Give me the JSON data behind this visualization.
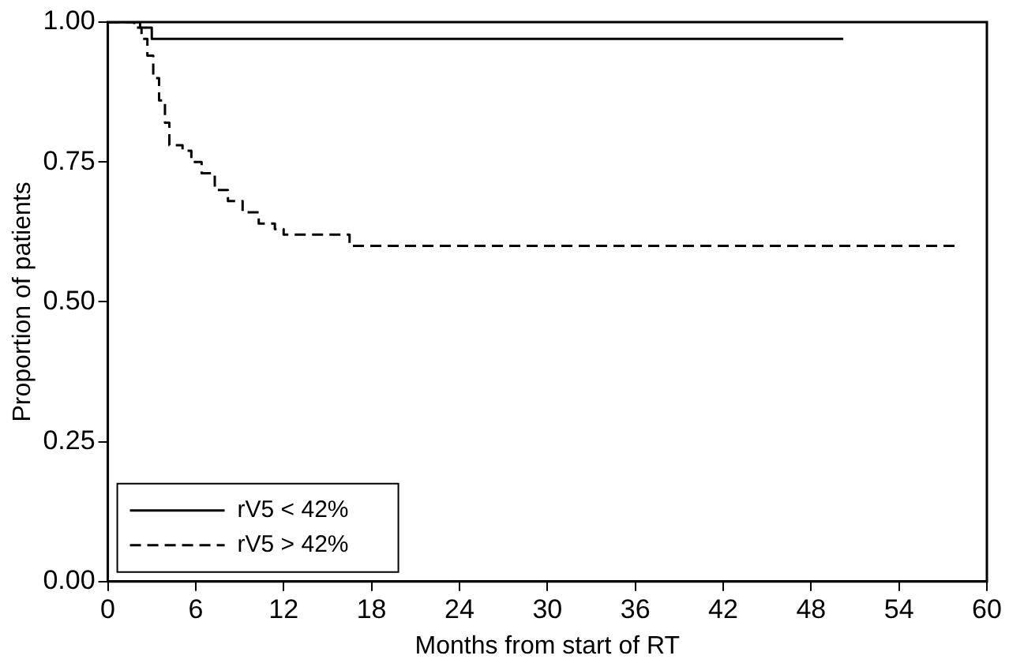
{
  "chart_data": {
    "type": "step",
    "xlabel": "Months from start of RT",
    "ylabel": "Proportion of patients",
    "series": [
      {
        "name": "rV5 < 42%",
        "color": "#000000",
        "line_style": "solid",
        "x": [
          0,
          2.2,
          3.0,
          50.2
        ],
        "values": [
          1.0,
          0.99,
          0.97,
          0.97
        ]
      },
      {
        "name": "rV5 > 42%",
        "color": "#000000",
        "line_style": "dashed",
        "x": [
          0,
          1.8,
          2.3,
          2.7,
          3.1,
          3.5,
          3.9,
          4.2,
          5.1,
          5.7,
          6.4,
          7.3,
          8.2,
          9.2,
          10.3,
          11.4,
          12.0,
          16.5,
          58.0
        ],
        "values": [
          1.0,
          0.99,
          0.97,
          0.94,
          0.9,
          0.86,
          0.82,
          0.78,
          0.77,
          0.75,
          0.73,
          0.7,
          0.68,
          0.66,
          0.64,
          0.63,
          0.62,
          0.6,
          0.6
        ]
      }
    ],
    "xlim": [
      0,
      60
    ],
    "xticks": [
      0,
      6,
      12,
      18,
      24,
      30,
      36,
      42,
      48,
      54,
      60
    ],
    "ylim": [
      0,
      1
    ],
    "yticks": [
      {
        "value": 0,
        "label": "0.00"
      },
      {
        "value": 0.25,
        "label": "0.25"
      },
      {
        "value": 0.5,
        "label": "0.50"
      },
      {
        "value": 0.75,
        "label": "0.75"
      },
      {
        "value": 1,
        "label": "1.00"
      }
    ],
    "grid": false,
    "legend": "bottom left",
    "marker": "none"
  }
}
